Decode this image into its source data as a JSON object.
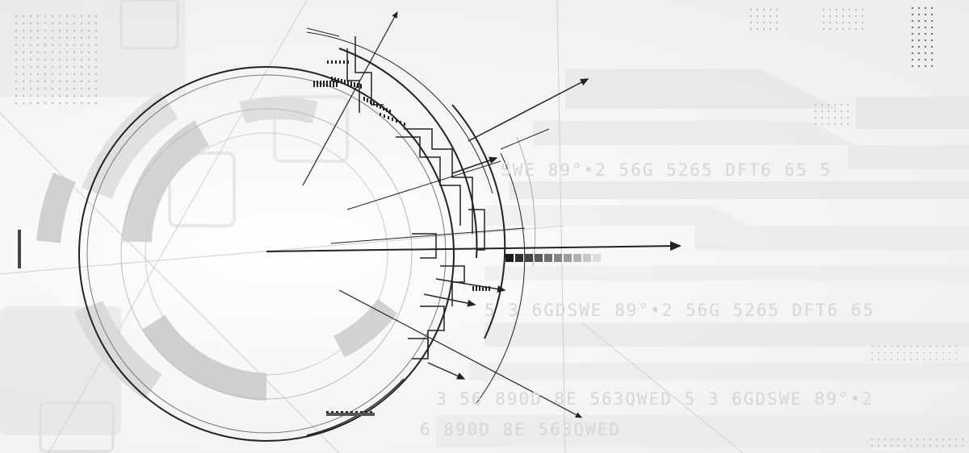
{
  "background": {
    "base_color": "#f3f3f3",
    "line_color": "#2a2a2a",
    "panel_color": "#d9d9d9",
    "text_color": "#d0d0d0"
  },
  "code_strings": {
    "line_1": "SWE   89°•2  56G  5265   DFT6  65  5",
    "line_2": "5  3  6GDSWE    89°•2  56G  5265   DFT6  65",
    "line_3": "3  56  890D  8E  563QWED  5  3  6GDSWE      89°•2",
    "line_4": "6  890D  8E  563QWED"
  },
  "gradient_scale": {
    "colors": [
      "#1a1a1a",
      "#2e2e2e",
      "#444444",
      "#5a5a5a",
      "#707070",
      "#868686",
      "#9c9c9c",
      "#b2b2b2",
      "#c8c8c8",
      "#dedede"
    ]
  }
}
